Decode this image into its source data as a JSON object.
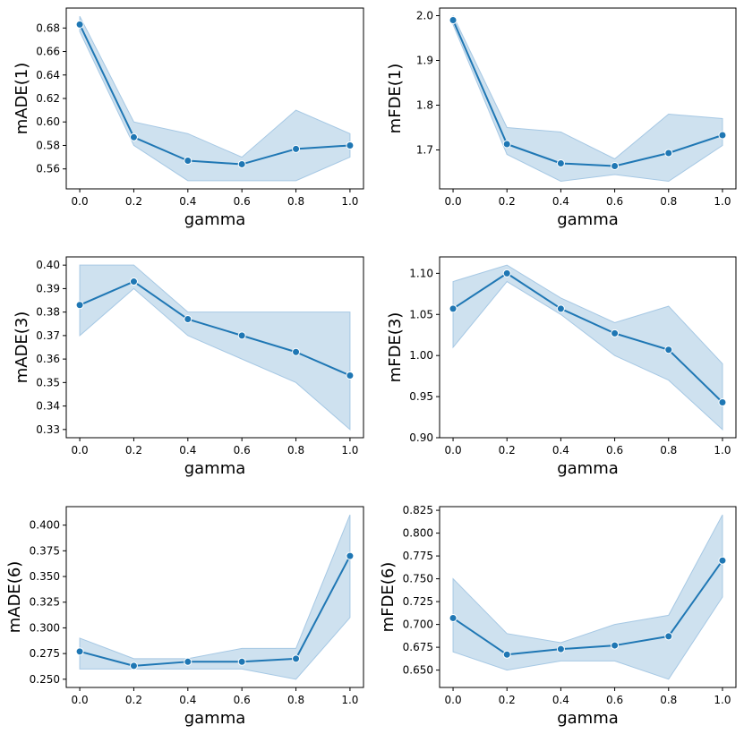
{
  "colors": {
    "line": "#1f77b4",
    "band_fill": "#1f77b4",
    "band_opacity": 0.22,
    "band_stroke": "#a6c8e4"
  },
  "chart_data": [
    {
      "type": "line",
      "xlabel": "gamma",
      "ylabel": "mADE(1)",
      "x": [
        0.0,
        0.2,
        0.4,
        0.6,
        0.8,
        1.0
      ],
      "values": [
        0.683,
        0.587,
        0.567,
        0.564,
        0.577,
        0.58
      ],
      "lower": [
        0.677,
        0.58,
        0.55,
        0.55,
        0.55,
        0.57
      ],
      "upper": [
        0.69,
        0.6,
        0.59,
        0.57,
        0.61,
        0.59
      ],
      "xticks": [
        0.0,
        0.2,
        0.4,
        0.6,
        0.8,
        1.0
      ],
      "xtick_labels": [
        "0.0",
        "0.2",
        "0.4",
        "0.6",
        "0.8",
        "1.0"
      ],
      "yticks": [
        0.56,
        0.58,
        0.6,
        0.62,
        0.64,
        0.66,
        0.68
      ],
      "ytick_labels": [
        "0.56",
        "0.58",
        "0.60",
        "0.62",
        "0.64",
        "0.66",
        "0.68"
      ],
      "xlim": [
        -0.05,
        1.05
      ],
      "ylim": [
        0.543,
        0.697
      ]
    },
    {
      "type": "line",
      "xlabel": "gamma",
      "ylabel": "mFDE(1)",
      "x": [
        0.0,
        0.2,
        0.4,
        0.6,
        0.8,
        1.0
      ],
      "values": [
        1.99,
        1.713,
        1.67,
        1.664,
        1.693,
        1.733
      ],
      "lower": [
        1.98,
        1.69,
        1.63,
        1.645,
        1.63,
        1.71
      ],
      "upper": [
        2.0,
        1.75,
        1.74,
        1.68,
        1.78,
        1.77
      ],
      "xticks": [
        0.0,
        0.2,
        0.4,
        0.6,
        0.8,
        1.0
      ],
      "xtick_labels": [
        "0.0",
        "0.2",
        "0.4",
        "0.6",
        "0.8",
        "1.0"
      ],
      "yticks": [
        1.7,
        1.8,
        1.9,
        2.0
      ],
      "ytick_labels": [
        "1.7",
        "1.8",
        "1.9",
        "2.0"
      ],
      "xlim": [
        -0.05,
        1.05
      ],
      "ylim": [
        1.613,
        2.017
      ]
    },
    {
      "type": "line",
      "xlabel": "gamma",
      "ylabel": "mADE(3)",
      "x": [
        0.0,
        0.2,
        0.4,
        0.6,
        0.8,
        1.0
      ],
      "values": [
        0.383,
        0.393,
        0.377,
        0.37,
        0.363,
        0.353
      ],
      "lower": [
        0.37,
        0.39,
        0.37,
        0.36,
        0.35,
        0.33
      ],
      "upper": [
        0.4,
        0.4,
        0.38,
        0.38,
        0.38,
        0.38
      ],
      "xticks": [
        0.0,
        0.2,
        0.4,
        0.6,
        0.8,
        1.0
      ],
      "xtick_labels": [
        "0.0",
        "0.2",
        "0.4",
        "0.6",
        "0.8",
        "1.0"
      ],
      "yticks": [
        0.33,
        0.34,
        0.35,
        0.36,
        0.37,
        0.38,
        0.39,
        0.4
      ],
      "ytick_labels": [
        "0.33",
        "0.34",
        "0.35",
        "0.36",
        "0.37",
        "0.38",
        "0.39",
        "0.40"
      ],
      "xlim": [
        -0.05,
        1.05
      ],
      "ylim": [
        0.3265,
        0.4035
      ]
    },
    {
      "type": "line",
      "xlabel": "gamma",
      "ylabel": "mFDE(3)",
      "x": [
        0.0,
        0.2,
        0.4,
        0.6,
        0.8,
        1.0
      ],
      "values": [
        1.057,
        1.1,
        1.057,
        1.027,
        1.007,
        0.943
      ],
      "lower": [
        1.01,
        1.09,
        1.05,
        1.0,
        0.97,
        0.91
      ],
      "upper": [
        1.09,
        1.11,
        1.07,
        1.04,
        1.06,
        0.99
      ],
      "xticks": [
        0.0,
        0.2,
        0.4,
        0.6,
        0.8,
        1.0
      ],
      "xtick_labels": [
        "0.0",
        "0.2",
        "0.4",
        "0.6",
        "0.8",
        "1.0"
      ],
      "yticks": [
        0.9,
        0.95,
        1.0,
        1.05,
        1.1
      ],
      "ytick_labels": [
        "0.90",
        "0.95",
        "1.00",
        "1.05",
        "1.10"
      ],
      "xlim": [
        -0.05,
        1.05
      ],
      "ylim": [
        0.9,
        1.12
      ]
    },
    {
      "type": "line",
      "xlabel": "gamma",
      "ylabel": "mADE(6)",
      "x": [
        0.0,
        0.2,
        0.4,
        0.6,
        0.8,
        1.0
      ],
      "values": [
        0.277,
        0.263,
        0.267,
        0.267,
        0.27,
        0.37
      ],
      "lower": [
        0.26,
        0.26,
        0.26,
        0.26,
        0.25,
        0.31
      ],
      "upper": [
        0.29,
        0.27,
        0.27,
        0.28,
        0.28,
        0.41
      ],
      "xticks": [
        0.0,
        0.2,
        0.4,
        0.6,
        0.8,
        1.0
      ],
      "xtick_labels": [
        "0.0",
        "0.2",
        "0.4",
        "0.6",
        "0.8",
        "1.0"
      ],
      "yticks": [
        0.25,
        0.275,
        0.3,
        0.325,
        0.35,
        0.375,
        0.4
      ],
      "ytick_labels": [
        "0.250",
        "0.275",
        "0.300",
        "0.325",
        "0.350",
        "0.375",
        "0.400"
      ],
      "xlim": [
        -0.05,
        1.05
      ],
      "ylim": [
        0.242,
        0.418
      ]
    },
    {
      "type": "line",
      "xlabel": "gamma",
      "ylabel": "mFDE(6)",
      "x": [
        0.0,
        0.2,
        0.4,
        0.6,
        0.8,
        1.0
      ],
      "values": [
        0.707,
        0.667,
        0.673,
        0.677,
        0.687,
        0.77
      ],
      "lower": [
        0.67,
        0.65,
        0.66,
        0.66,
        0.64,
        0.73
      ],
      "upper": [
        0.75,
        0.69,
        0.68,
        0.7,
        0.71,
        0.82
      ],
      "xticks": [
        0.0,
        0.2,
        0.4,
        0.6,
        0.8,
        1.0
      ],
      "xtick_labels": [
        "0.0",
        "0.2",
        "0.4",
        "0.6",
        "0.8",
        "1.0"
      ],
      "yticks": [
        0.65,
        0.675,
        0.7,
        0.725,
        0.75,
        0.775,
        0.8,
        0.825
      ],
      "ytick_labels": [
        "0.650",
        "0.675",
        "0.700",
        "0.725",
        "0.750",
        "0.775",
        "0.800",
        "0.825"
      ],
      "xlim": [
        -0.05,
        1.05
      ],
      "ylim": [
        0.631,
        0.829
      ]
    }
  ]
}
